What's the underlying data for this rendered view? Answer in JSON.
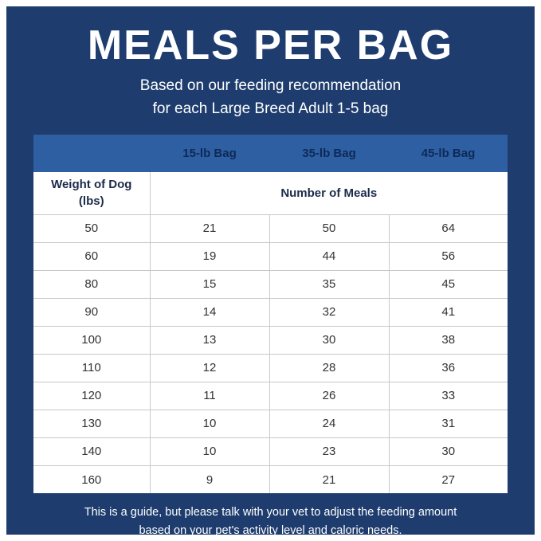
{
  "header": {
    "title": "MEALS PER BAG",
    "subtitle_lines": [
      "Based on our feeding recommendation",
      "for each Large Breed Adult 1-5 bag"
    ]
  },
  "table": {
    "bag_headers": [
      "15-lb Bag",
      "35-lb Bag",
      "45-lb Bag"
    ],
    "weight_header_lines": [
      "Weight of Dog",
      "(lbs)"
    ],
    "meals_header": "Number of Meals",
    "rows": [
      {
        "weight": "50",
        "values": [
          "21",
          "50",
          "64"
        ]
      },
      {
        "weight": "60",
        "values": [
          "19",
          "44",
          "56"
        ]
      },
      {
        "weight": "80",
        "values": [
          "15",
          "35",
          "45"
        ]
      },
      {
        "weight": "90",
        "values": [
          "14",
          "32",
          "41"
        ]
      },
      {
        "weight": "100",
        "values": [
          "13",
          "30",
          "38"
        ]
      },
      {
        "weight": "110",
        "values": [
          "12",
          "28",
          "36"
        ]
      },
      {
        "weight": "120",
        "values": [
          "11",
          "26",
          "33"
        ]
      },
      {
        "weight": "130",
        "values": [
          "10",
          "24",
          "31"
        ]
      },
      {
        "weight": "140",
        "values": [
          "10",
          "23",
          "30"
        ]
      },
      {
        "weight": "160",
        "values": [
          "9",
          "21",
          "27"
        ]
      }
    ]
  },
  "footer": {
    "lines": [
      "This is a guide, but please talk with your vet to adjust the feeding amount",
      "based on your pet's activity level and caloric needs."
    ]
  },
  "colors": {
    "background": "#1e3d6e",
    "table_header_bg": "#2e5fa3",
    "table_header_text": "#0d2a56",
    "cell_text": "#333333",
    "grid_border": "#c8c8c8",
    "text_on_blue": "#ffffff"
  },
  "chart_data": {
    "type": "table",
    "title": "MEALS PER BAG",
    "subtitle": "Based on our feeding recommendation for each Large Breed Adult 1-5 bag",
    "columns": [
      "Weight of Dog (lbs)",
      "15-lb Bag",
      "35-lb Bag",
      "45-lb Bag"
    ],
    "value_label": "Number of Meals",
    "rows": [
      [
        50,
        21,
        50,
        64
      ],
      [
        60,
        19,
        44,
        56
      ],
      [
        80,
        15,
        35,
        45
      ],
      [
        90,
        14,
        32,
        41
      ],
      [
        100,
        13,
        30,
        38
      ],
      [
        110,
        12,
        28,
        36
      ],
      [
        120,
        11,
        26,
        33
      ],
      [
        130,
        10,
        24,
        31
      ],
      [
        140,
        10,
        23,
        30
      ],
      [
        160,
        9,
        21,
        27
      ]
    ],
    "note": "This is a guide, but please talk with your vet to adjust the feeding amount based on your pet's activity level and caloric needs."
  }
}
